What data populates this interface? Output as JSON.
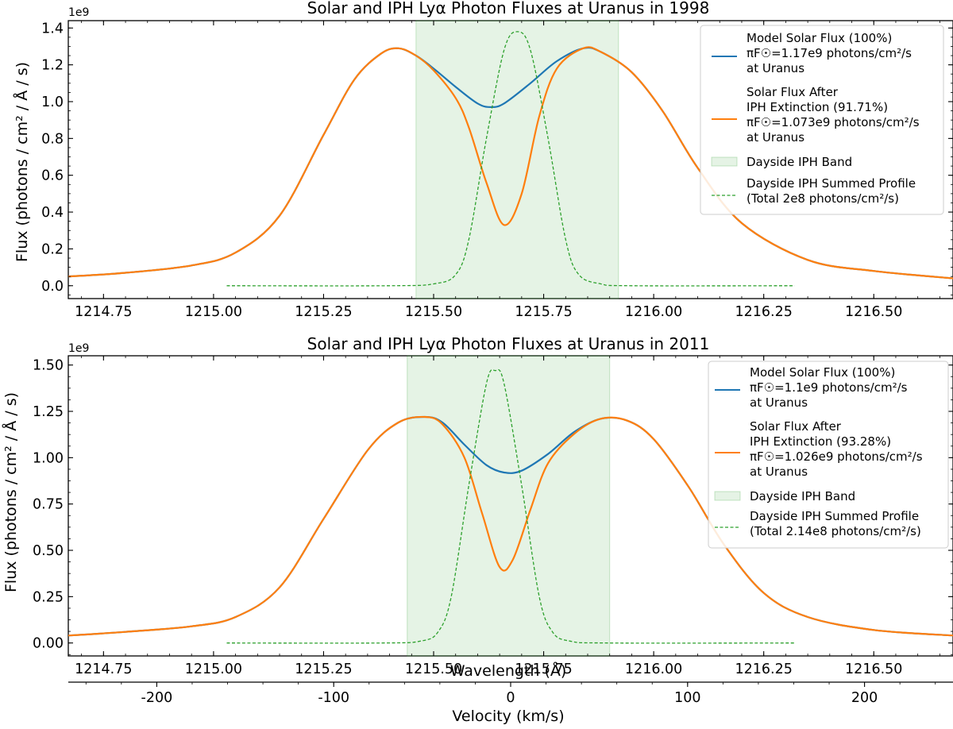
{
  "chart_data": [
    {
      "type": "line",
      "title": "Solar and IPH Lyα Photon Fluxes at Uranus in 1998",
      "xlabel": "",
      "ylabel": "Flux (photons / cm² / Å / s)",
      "y_exponent": "1e9",
      "xlim": [
        1214.67,
        1216.68
      ],
      "ylim": [
        -0.07,
        1.44
      ],
      "xticks": [
        "1214.75",
        "1215.00",
        "1215.25",
        "1215.50",
        "1215.75",
        "1216.00",
        "1216.25",
        "1216.50"
      ],
      "yticks": [
        "0.0",
        "0.2",
        "0.4",
        "0.6",
        "0.8",
        "1.0",
        "1.2",
        "1.4"
      ],
      "band": {
        "name": "Dayside IPH Band",
        "x": [
          1215.46,
          1215.92
        ],
        "color": "#2ca02c"
      },
      "series": [
        {
          "name": "Model Solar Flux (100%)",
          "legend_lines": [
            "Model Solar Flux (100%)",
            "πF☉=1.17e9 photons/cm²/s",
            "at Uranus"
          ],
          "color": "#1f77b4",
          "style": "solid",
          "x": [
            1214.67,
            1214.8,
            1214.95,
            1215.05,
            1215.15,
            1215.25,
            1215.32,
            1215.38,
            1215.42,
            1215.46,
            1215.5,
            1215.55,
            1215.6,
            1215.63,
            1215.66,
            1215.72,
            1215.78,
            1215.84,
            1215.88,
            1215.95,
            1216.02,
            1216.1,
            1216.2,
            1216.35,
            1216.5,
            1216.68
          ],
          "y": [
            0.05,
            0.07,
            0.11,
            0.18,
            0.38,
            0.82,
            1.12,
            1.26,
            1.29,
            1.25,
            1.18,
            1.08,
            0.99,
            0.97,
            0.99,
            1.1,
            1.22,
            1.29,
            1.27,
            1.16,
            0.95,
            0.64,
            0.34,
            0.14,
            0.08,
            0.04
          ]
        },
        {
          "name": "Solar Flux After IPH Extinction (91.71%)",
          "legend_lines": [
            "Solar Flux After",
            "IPH Extinction (91.71%)",
            "πF☉=1.073e9 photons/cm²/s",
            "at Uranus"
          ],
          "color": "#ff7f0e",
          "style": "solid",
          "x": [
            1214.67,
            1214.8,
            1214.95,
            1215.05,
            1215.15,
            1215.25,
            1215.32,
            1215.38,
            1215.42,
            1215.46,
            1215.5,
            1215.55,
            1215.58,
            1215.62,
            1215.66,
            1215.7,
            1215.74,
            1215.78,
            1215.84,
            1215.88,
            1215.95,
            1216.02,
            1216.1,
            1216.2,
            1216.35,
            1216.5,
            1216.68
          ],
          "y": [
            0.05,
            0.07,
            0.11,
            0.18,
            0.38,
            0.82,
            1.12,
            1.26,
            1.29,
            1.25,
            1.17,
            1.02,
            0.86,
            0.56,
            0.33,
            0.5,
            0.92,
            1.18,
            1.29,
            1.27,
            1.16,
            0.95,
            0.64,
            0.34,
            0.14,
            0.08,
            0.04
          ]
        },
        {
          "name": "Dayside IPH Summed Profile",
          "legend_lines": [
            "Dayside IPH Summed Profile",
            "(Total 2e8 photons/cm²/s)"
          ],
          "color": "#2ca02c",
          "style": "dashed",
          "x": [
            1215.03,
            1215.4,
            1215.5,
            1215.55,
            1215.58,
            1215.62,
            1215.66,
            1215.69,
            1215.72,
            1215.76,
            1215.8,
            1215.83,
            1215.88,
            1215.95,
            1216.32
          ],
          "y": [
            0.0,
            0.0,
            0.01,
            0.06,
            0.25,
            0.8,
            1.28,
            1.38,
            1.28,
            0.8,
            0.25,
            0.06,
            0.01,
            0.0,
            0.0
          ]
        }
      ],
      "legend_position": "top-right",
      "grid": false
    },
    {
      "type": "line",
      "title": "Solar and IPH Lyα Photon Fluxes at Uranus in 2011",
      "xlabel": "Wavelength (Å)",
      "ylabel": "Flux (photons / cm² / Å / s)",
      "y_exponent": "1e9",
      "xlim": [
        1214.67,
        1216.68
      ],
      "ylim": [
        -0.07,
        1.55
      ],
      "xticks": [
        "1214.75",
        "1215.00",
        "1215.25",
        "1215.50",
        "1215.75",
        "1216.00",
        "1216.25",
        "1216.50"
      ],
      "yticks": [
        "0.00",
        "0.25",
        "0.50",
        "0.75",
        "1.00",
        "1.25",
        "1.50"
      ],
      "band": {
        "name": "Dayside IPH Band",
        "x": [
          1215.44,
          1215.9
        ],
        "color": "#2ca02c"
      },
      "secondary_x_axis": {
        "label": "Velocity (km/s)",
        "xlim": [
          -250,
          250
        ],
        "ticks": [
          -200,
          -100,
          0,
          100,
          200
        ],
        "tick_labels": [
          "-200",
          "-100",
          "0",
          "100",
          "200"
        ]
      },
      "series": [
        {
          "name": "Model Solar Flux (100%)",
          "legend_lines": [
            "Model Solar Flux (100%)",
            "πF☉=1.1e9 photons/cm²/s",
            "at Uranus"
          ],
          "color": "#1f77b4",
          "style": "solid",
          "x": [
            1214.67,
            1214.8,
            1214.95,
            1215.05,
            1215.15,
            1215.25,
            1215.35,
            1215.42,
            1215.48,
            1215.52,
            1215.57,
            1215.62,
            1215.66,
            1215.7,
            1215.76,
            1215.82,
            1215.88,
            1215.94,
            1216.0,
            1216.08,
            1216.16,
            1216.25,
            1216.35,
            1216.5,
            1216.68
          ],
          "y": [
            0.04,
            0.06,
            0.09,
            0.14,
            0.3,
            0.67,
            1.04,
            1.19,
            1.22,
            1.19,
            1.07,
            0.96,
            0.92,
            0.93,
            1.02,
            1.14,
            1.21,
            1.2,
            1.1,
            0.84,
            0.53,
            0.27,
            0.14,
            0.07,
            0.04
          ]
        },
        {
          "name": "Solar Flux After IPH Extinction (93.28%)",
          "legend_lines": [
            "Solar Flux After",
            "IPH Extinction (93.28%)",
            "πF☉=1.026e9 photons/cm²/s",
            "at Uranus"
          ],
          "color": "#ff7f0e",
          "style": "solid",
          "x": [
            1214.67,
            1214.8,
            1214.95,
            1215.05,
            1215.15,
            1215.25,
            1215.35,
            1215.42,
            1215.48,
            1215.52,
            1215.57,
            1215.61,
            1215.65,
            1215.68,
            1215.72,
            1215.76,
            1215.82,
            1215.88,
            1215.94,
            1216.0,
            1216.08,
            1216.16,
            1216.25,
            1216.35,
            1216.5,
            1216.68
          ],
          "y": [
            0.04,
            0.06,
            0.09,
            0.14,
            0.3,
            0.67,
            1.04,
            1.19,
            1.22,
            1.18,
            1.0,
            0.7,
            0.41,
            0.45,
            0.72,
            0.97,
            1.13,
            1.21,
            1.2,
            1.1,
            0.84,
            0.53,
            0.27,
            0.14,
            0.07,
            0.04
          ]
        },
        {
          "name": "Dayside IPH Summed Profile",
          "legend_lines": [
            "Dayside IPH Summed Profile",
            "(Total 2.14e8 photons/cm²/s)"
          ],
          "color": "#2ca02c",
          "style": "dashed",
          "x": [
            1215.03,
            1215.38,
            1215.47,
            1215.51,
            1215.54,
            1215.58,
            1215.62,
            1215.64,
            1215.66,
            1215.7,
            1215.74,
            1215.77,
            1215.81,
            1215.9,
            1216.32
          ],
          "y": [
            0.0,
            0.0,
            0.01,
            0.06,
            0.25,
            0.85,
            1.4,
            1.47,
            1.4,
            0.85,
            0.25,
            0.06,
            0.01,
            0.0,
            0.0
          ]
        }
      ],
      "legend_position": "top-right",
      "grid": false
    }
  ]
}
